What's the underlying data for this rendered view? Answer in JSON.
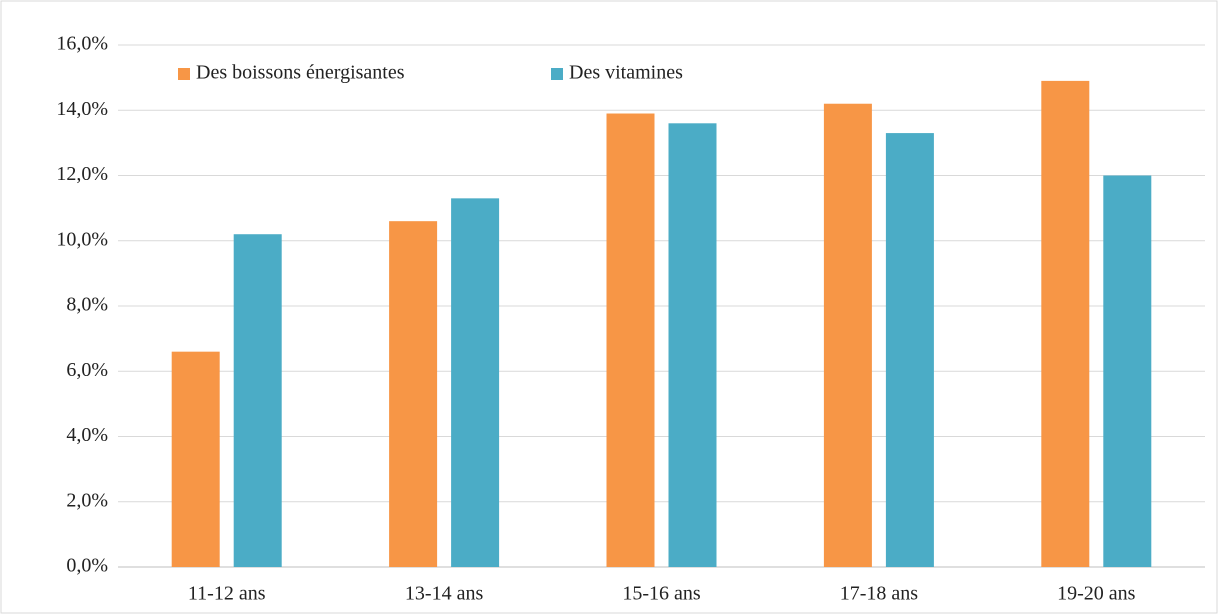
{
  "chart_data": {
    "type": "bar",
    "categories": [
      "11-12 ans",
      "13-14 ans",
      "15-16 ans",
      "17-18 ans",
      "19-20 ans"
    ],
    "series": [
      {
        "name": "Des boissons énergisantes",
        "color": "#f79646",
        "values": [
          6.6,
          10.6,
          13.9,
          14.2,
          14.9
        ]
      },
      {
        "name": "Des vitamines",
        "color": "#4bacc6",
        "values": [
          10.2,
          11.3,
          13.6,
          13.3,
          12.0
        ]
      }
    ],
    "ylim": [
      0,
      16
    ],
    "yticks": [
      {
        "value": 0,
        "label": "0,0%"
      },
      {
        "value": 2,
        "label": "2,0%"
      },
      {
        "value": 4,
        "label": "4,0%"
      },
      {
        "value": 6,
        "label": "6,0%"
      },
      {
        "value": 8,
        "label": "8,0%"
      },
      {
        "value": 10,
        "label": "10,0%"
      },
      {
        "value": 12,
        "label": "12,0%"
      },
      {
        "value": 14,
        "label": "14,0%"
      },
      {
        "value": 16,
        "label": "16,0%"
      }
    ],
    "grid": true,
    "legend": "top-left"
  }
}
